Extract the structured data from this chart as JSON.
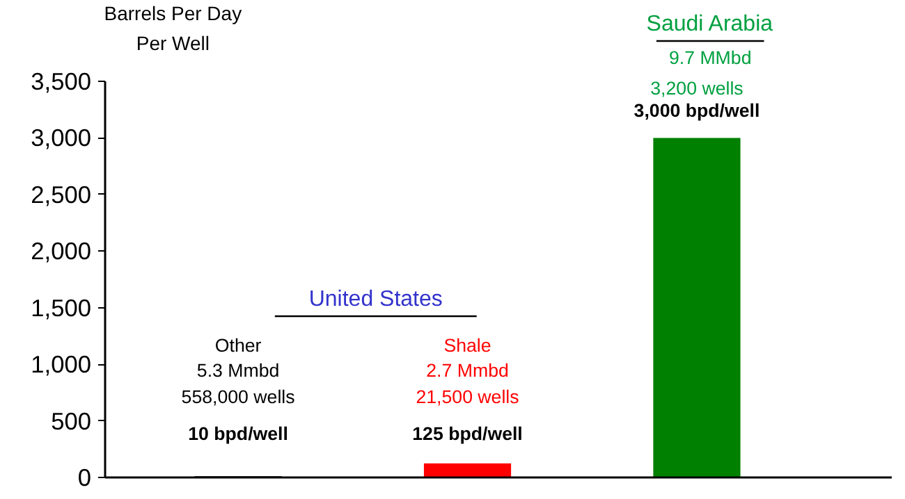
{
  "chart_data": {
    "type": "bar",
    "ylabel": "Barrels Per Day\nPer Well",
    "categories": [
      null,
      null,
      null
    ],
    "values": [
      10,
      125,
      3000
    ],
    "colors": [
      "#000000",
      "#ff0000",
      "#008000"
    ],
    "value_labels": [
      "10 bpd/well",
      "125 bpd/well",
      "3,000 bpd/well"
    ],
    "ylim": [
      0,
      3500
    ],
    "yticks": [
      {
        "value": 0,
        "label": "0"
      },
      {
        "value": 500,
        "label": "500"
      },
      {
        "value": 1000,
        "label": "1,000"
      },
      {
        "value": 1500,
        "label": "1,500"
      },
      {
        "value": 2000,
        "label": "2,000"
      },
      {
        "value": 2500,
        "label": "2,500"
      },
      {
        "value": 3000,
        "label": "3,000"
      },
      {
        "value": 3500,
        "label": "3,500"
      }
    ],
    "annotations": [
      "United States",
      "Other",
      "5.3 Mmbd",
      "558,000 wells",
      "Shale",
      "2.7 Mmbd",
      "21,500 wells",
      "Saudi Arabia",
      "9.7 MMbd",
      "3,200 wells"
    ],
    "grid": false
  }
}
